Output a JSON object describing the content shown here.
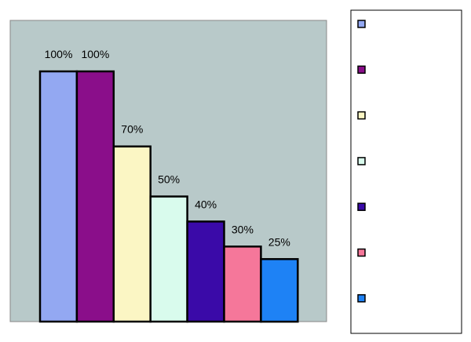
{
  "chart_data": {
    "type": "bar",
    "categories": [
      "",
      "",
      "",
      "",
      "",
      "",
      ""
    ],
    "values": [
      100,
      100,
      70,
      50,
      40,
      30,
      25
    ],
    "data_labels": [
      "100%",
      "100%",
      "70%",
      "50%",
      "40%",
      "30%",
      "25%"
    ],
    "colors": [
      "#93a8f2",
      "#8a0e8a",
      "#fbf6c4",
      "#d9fbed",
      "#3a0aa8",
      "#f5779a",
      "#1e82f5"
    ],
    "ylim": [
      0,
      100
    ],
    "grid": false,
    "legend": {
      "position": "right",
      "entries": [
        "",
        "",
        "",
        "",
        "",
        "",
        ""
      ]
    },
    "plot_background": "#b8c9c9"
  }
}
